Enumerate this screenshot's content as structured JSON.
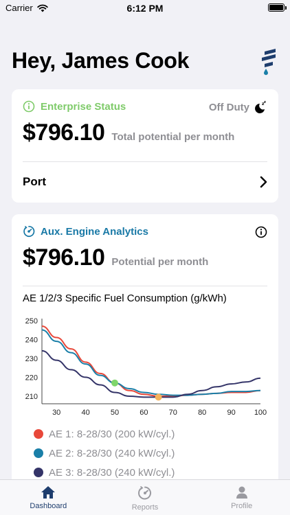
{
  "status_bar": {
    "carrier": "Carrier",
    "time": "6:12 PM"
  },
  "header": {
    "greeting": "Hey, James Cook"
  },
  "enterprise": {
    "title": "Enterprise Status",
    "duty_status": "Off Duty",
    "amount": "$796.10",
    "amount_caption": "Total potential per month",
    "port_label": "Port"
  },
  "analytics": {
    "title": "Aux. Engine Analytics",
    "amount": "$796.10",
    "amount_caption": "Potential per month",
    "chart_title": "AE 1/2/3 Specific Fuel Consumption (g/kWh)"
  },
  "chart_data": {
    "type": "line",
    "title": "AE 1/2/3 Specific Fuel Consumption (g/kWh)",
    "xlim": [
      25,
      100
    ],
    "ylim": [
      206,
      251
    ],
    "x_ticks": [
      30,
      40,
      50,
      60,
      70,
      80,
      90,
      100
    ],
    "y_ticks": [
      210,
      220,
      230,
      240,
      250
    ],
    "series": [
      {
        "name": "AE 1: 8-28/30 (200 kW/cyl.)",
        "color": "#e8483a",
        "x": [
          25,
          30,
          35,
          40,
          45,
          50,
          55,
          60,
          65,
          70,
          75,
          80,
          85,
          90,
          95,
          100
        ],
        "y": [
          247,
          241,
          235,
          228,
          222,
          217,
          213,
          211,
          210,
          210,
          210.5,
          211,
          211.5,
          212,
          212,
          213
        ]
      },
      {
        "name": "AE 2: 8-28/30 (240 kW/cyl.)",
        "color": "#1a7fa8",
        "x": [
          25,
          30,
          35,
          40,
          45,
          50,
          55,
          60,
          65,
          70,
          75,
          80,
          85,
          90,
          95,
          100
        ],
        "y": [
          245,
          239,
          233,
          227,
          221,
          217,
          214,
          212,
          211,
          210.5,
          210.5,
          211,
          211.5,
          212.5,
          212.5,
          213
        ]
      },
      {
        "name": "AE 3: 8-28/30 (240 kW/cyl.)",
        "color": "#343468",
        "x": [
          25,
          30,
          35,
          40,
          45,
          50,
          55,
          60,
          65,
          70,
          75,
          80,
          85,
          90,
          95,
          100
        ],
        "y": [
          234,
          229,
          224,
          220,
          216,
          212,
          210,
          209.5,
          209.5,
          209.5,
          211,
          213,
          215,
          216.5,
          217.5,
          219.5
        ]
      }
    ],
    "markers": [
      {
        "x": 50,
        "y": 217,
        "color": "#7fd66a"
      },
      {
        "x": 65,
        "y": 209.5,
        "color": "#f5b35c"
      }
    ]
  },
  "tabs": [
    {
      "label": "Dashboard",
      "icon": "house-icon",
      "active": true
    },
    {
      "label": "Reports",
      "icon": "gauge-icon",
      "active": false
    },
    {
      "label": "Profile",
      "icon": "person-icon",
      "active": false
    }
  ]
}
